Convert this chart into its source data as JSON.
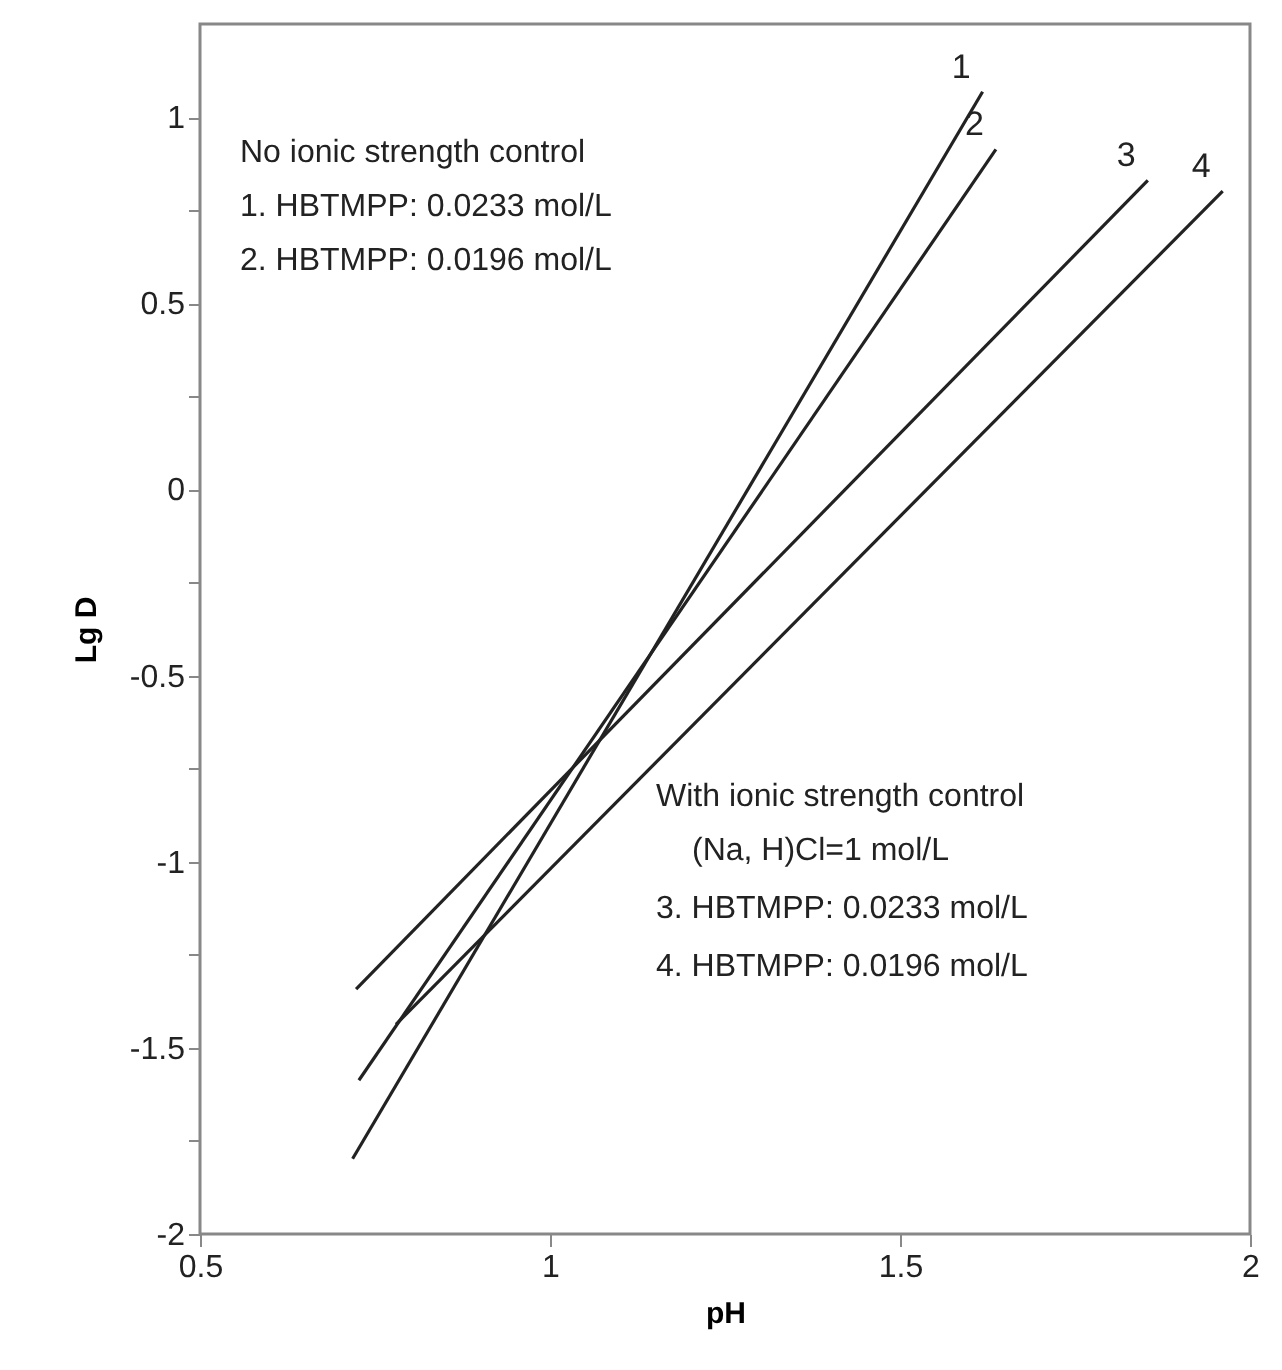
{
  "chart_data": {
    "type": "line",
    "xlabel": "pH",
    "ylabel": "Lg D",
    "xlim": [
      0.5,
      2
    ],
    "xticks": [
      0.5,
      1,
      1.5,
      2
    ],
    "ylim": [
      -2,
      1.25
    ],
    "yticks": [
      -2,
      {
        "value": -1.75,
        "label": null
      },
      -1.5,
      {
        "value": -1.25,
        "label": null
      },
      -1,
      {
        "value": -0.75,
        "label": null
      },
      -0.5,
      {
        "value": -0.25,
        "label": null
      },
      0,
      {
        "value": 0.25,
        "label": null
      },
      0.5,
      {
        "value": 0.75,
        "label": null
      },
      1
    ],
    "grid": false,
    "marker": "none",
    "line_style": "solid",
    "series": [
      {
        "name": "1",
        "color": "#222222",
        "x": [
          0.718,
          1.618
        ],
        "values": [
          -1.798,
          1.068
        ]
      },
      {
        "name": "2",
        "color": "#222222",
        "x": [
          0.727,
          1.637
        ],
        "values": [
          -1.587,
          0.913
        ]
      },
      {
        "name": "3",
        "color": "#222222",
        "x": [
          0.723,
          1.854
        ],
        "values": [
          -1.342,
          0.83
        ]
      },
      {
        "name": "4",
        "color": "#222222",
        "x": [
          0.78,
          1.961
        ],
        "values": [
          -1.437,
          0.801
        ]
      }
    ],
    "annotations": [
      "No ionic strength control",
      "1. HBTMPP: 0.0233 mol/L",
      "2. HBTMPP: 0.0196 mol/L",
      "With ionic strength control",
      "(Na, H)Cl=1 mol/L",
      "3. HBTMPP: 0.0233 mol/L",
      "4. HBTMPP: 0.0196 mol/L"
    ]
  }
}
